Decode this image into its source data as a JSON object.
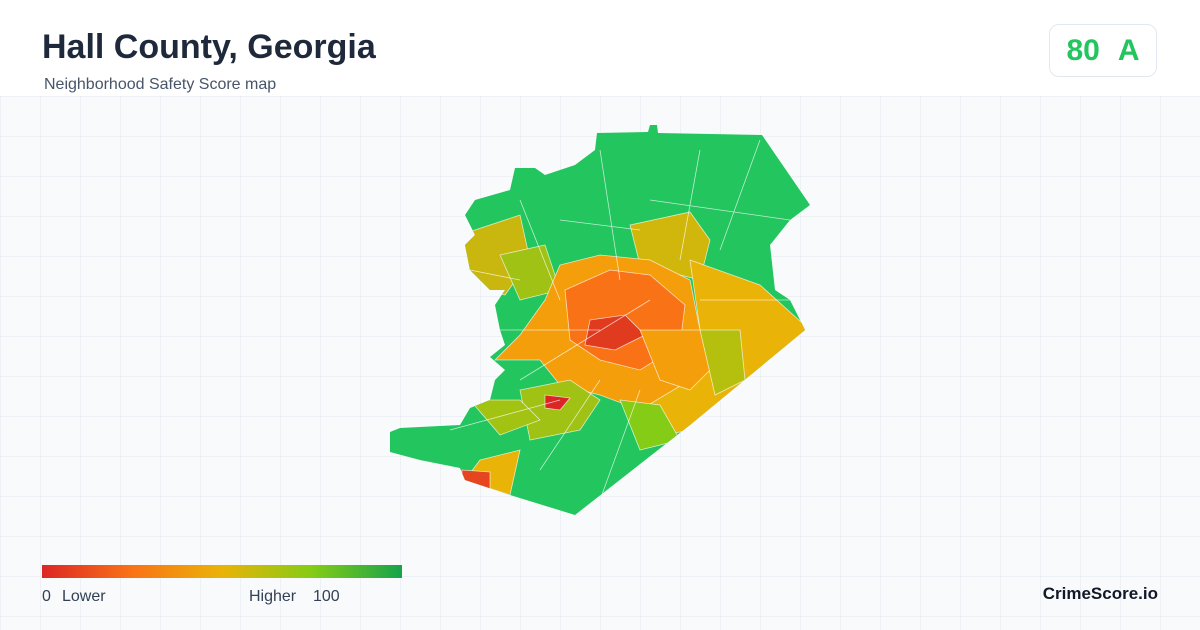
{
  "header": {
    "title": "Hall County, Georgia",
    "subtitle": "Neighborhood Safety Score map"
  },
  "score": {
    "value": "80",
    "grade": "A"
  },
  "legend": {
    "min": "0",
    "min_label": "Lower",
    "max_label": "Higher",
    "max": "100"
  },
  "brand": "CrimeScore.io"
}
